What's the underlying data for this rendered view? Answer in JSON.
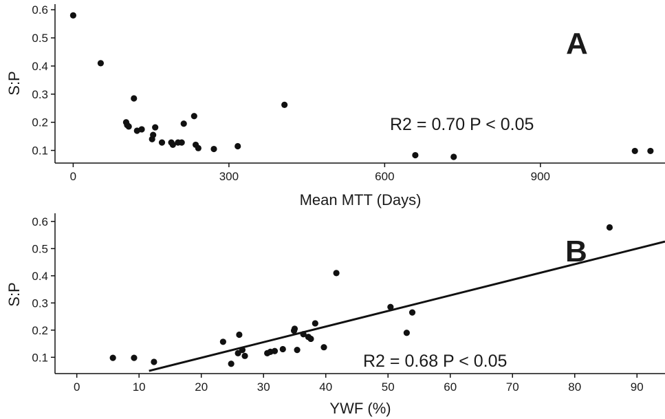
{
  "chart_data": [
    {
      "type": "scatter",
      "panel_label": "A",
      "xlabel": "Mean MTT (Days)",
      "ylabel": "S:P",
      "annotation": "R2 = 0.70  P < 0.05",
      "xlim": [
        -35,
        1140
      ],
      "ylim": [
        0.055,
        0.62
      ],
      "xticks": [
        0,
        300,
        600,
        900
      ],
      "xtick_labels": [
        "0",
        "300",
        "600",
        "900"
      ],
      "yticks": [
        0.1,
        0.2,
        0.3,
        0.4,
        0.5,
        0.6
      ],
      "ytick_labels": [
        "0.1",
        "0.2",
        "0.3",
        "0.4",
        "0.5",
        "0.6"
      ],
      "grid": false,
      "points": [
        {
          "x": 0,
          "y": 0.58
        },
        {
          "x": 53,
          "y": 0.41
        },
        {
          "x": 102,
          "y": 0.2
        },
        {
          "x": 104,
          "y": 0.19
        },
        {
          "x": 107,
          "y": 0.185
        },
        {
          "x": 117,
          "y": 0.285
        },
        {
          "x": 123,
          "y": 0.17
        },
        {
          "x": 132,
          "y": 0.175
        },
        {
          "x": 152,
          "y": 0.14
        },
        {
          "x": 154,
          "y": 0.155
        },
        {
          "x": 158,
          "y": 0.182
        },
        {
          "x": 171,
          "y": 0.128
        },
        {
          "x": 189,
          "y": 0.128
        },
        {
          "x": 192,
          "y": 0.12
        },
        {
          "x": 202,
          "y": 0.128
        },
        {
          "x": 209,
          "y": 0.128
        },
        {
          "x": 213,
          "y": 0.195
        },
        {
          "x": 233,
          "y": 0.222
        },
        {
          "x": 236,
          "y": 0.12
        },
        {
          "x": 241,
          "y": 0.108
        },
        {
          "x": 271,
          "y": 0.105
        },
        {
          "x": 317,
          "y": 0.115
        },
        {
          "x": 407,
          "y": 0.262
        },
        {
          "x": 659,
          "y": 0.083
        },
        {
          "x": 733,
          "y": 0.077
        },
        {
          "x": 1082,
          "y": 0.098
        },
        {
          "x": 1112,
          "y": 0.098
        }
      ]
    },
    {
      "type": "scatter",
      "panel_label": "B",
      "xlabel": "YWF (%)",
      "ylabel": "S:P",
      "annotation": "R2 = 0.68  P < 0.05",
      "xlim": [
        -3.5,
        94.5
      ],
      "ylim": [
        0.04,
        0.63
      ],
      "xticks": [
        0,
        10,
        20,
        30,
        40,
        50,
        60,
        70,
        80,
        90
      ],
      "xtick_labels": [
        "0",
        "10",
        "20",
        "30",
        "40",
        "50",
        "60",
        "70",
        "80",
        "90"
      ],
      "yticks": [
        0.1,
        0.2,
        0.3,
        0.4,
        0.5,
        0.6
      ],
      "ytick_labels": [
        "0.1",
        "0.2",
        "0.3",
        "0.4",
        "0.5",
        "0.6"
      ],
      "grid": false,
      "fit_line": {
        "x": [
          11.6,
          94.5
        ],
        "y": [
          0.05,
          0.526
        ]
      },
      "points": [
        {
          "x": 5.8,
          "y": 0.098
        },
        {
          "x": 9.2,
          "y": 0.098
        },
        {
          "x": 12.4,
          "y": 0.083
        },
        {
          "x": 23.5,
          "y": 0.157
        },
        {
          "x": 24.8,
          "y": 0.076
        },
        {
          "x": 25.9,
          "y": 0.115
        },
        {
          "x": 26.1,
          "y": 0.183
        },
        {
          "x": 26.6,
          "y": 0.127
        },
        {
          "x": 27.0,
          "y": 0.105
        },
        {
          "x": 30.6,
          "y": 0.115
        },
        {
          "x": 31.1,
          "y": 0.12
        },
        {
          "x": 31.8,
          "y": 0.123
        },
        {
          "x": 33.1,
          "y": 0.13
        },
        {
          "x": 34.9,
          "y": 0.198
        },
        {
          "x": 35.0,
          "y": 0.205
        },
        {
          "x": 35.4,
          "y": 0.127
        },
        {
          "x": 36.4,
          "y": 0.185
        },
        {
          "x": 37.2,
          "y": 0.175
        },
        {
          "x": 37.6,
          "y": 0.168
        },
        {
          "x": 38.3,
          "y": 0.225
        },
        {
          "x": 39.7,
          "y": 0.137
        },
        {
          "x": 41.7,
          "y": 0.41
        },
        {
          "x": 50.4,
          "y": 0.285
        },
        {
          "x": 53.0,
          "y": 0.19
        },
        {
          "x": 53.9,
          "y": 0.265
        },
        {
          "x": 85.6,
          "y": 0.578
        }
      ]
    }
  ]
}
